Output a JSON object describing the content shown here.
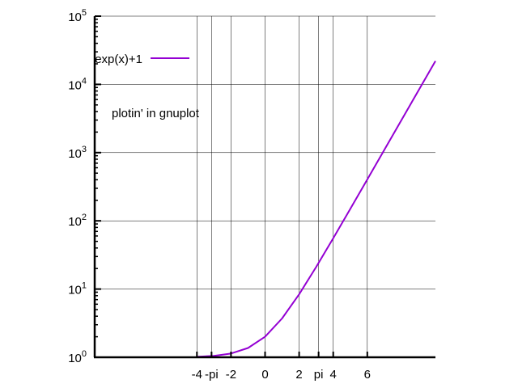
{
  "chart_data": {
    "type": "line",
    "title": "",
    "xlabel": "",
    "ylabel": "",
    "xlim": [
      -10,
      10
    ],
    "ylim": [
      1,
      100000
    ],
    "y_scale": "log",
    "grid": true,
    "legend_position": "top-left",
    "x_ticks": [
      {
        "value": -4,
        "label": "-4"
      },
      {
        "value": -3.14159,
        "label": "-pi"
      },
      {
        "value": -2,
        "label": "-2"
      },
      {
        "value": 0,
        "label": "0"
      },
      {
        "value": 2,
        "label": "2"
      },
      {
        "value": 3.14159,
        "label": "pi"
      },
      {
        "value": 4,
        "label": "4"
      },
      {
        "value": 6,
        "label": "6"
      }
    ],
    "y_ticks": [
      {
        "value": 1,
        "base": "10",
        "exp": "0"
      },
      {
        "value": 10,
        "base": "10",
        "exp": "1"
      },
      {
        "value": 100,
        "base": "10",
        "exp": "2"
      },
      {
        "value": 1000,
        "base": "10",
        "exp": "3"
      },
      {
        "value": 10000,
        "base": "10",
        "exp": "4"
      },
      {
        "value": 100000,
        "base": "10",
        "exp": "5"
      }
    ],
    "series": [
      {
        "name": "exp(x)+1",
        "color": "#9400d3",
        "x": [
          -4,
          -3,
          -2,
          -1,
          0,
          1,
          2,
          3,
          4,
          5,
          6,
          7,
          8,
          9,
          10
        ],
        "y": [
          1.018,
          1.05,
          1.135,
          1.368,
          2,
          3.718,
          8.389,
          21.09,
          55.6,
          149.4,
          404.4,
          1097.6,
          2982,
          8104,
          22027
        ]
      }
    ],
    "annotations": [
      {
        "text": "plotin' in gnuplot"
      }
    ]
  }
}
